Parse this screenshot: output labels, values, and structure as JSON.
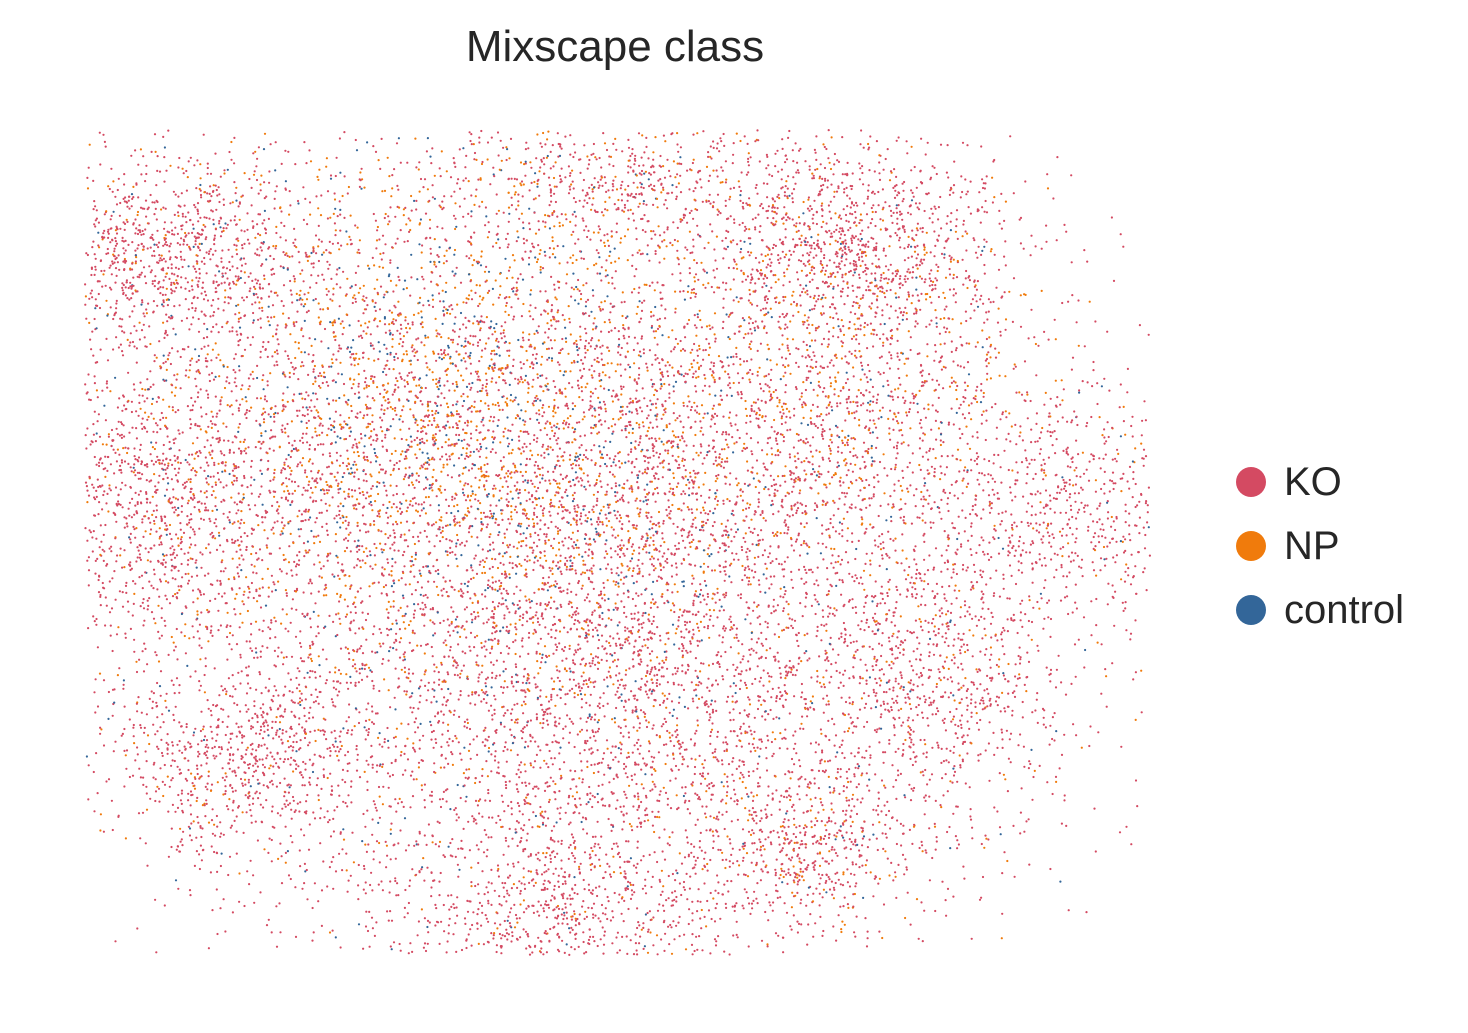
{
  "chart_data": {
    "type": "scatter",
    "title": "Mixscape class",
    "xlabel": "",
    "ylabel": "",
    "axes_visible": false,
    "grid": false,
    "legend_position": "right",
    "legend_entries": [
      "KO",
      "NP",
      "control"
    ],
    "series": [
      {
        "name": "KO",
        "color": "#d44a62"
      },
      {
        "name": "NP",
        "color": "#f07b0c"
      },
      {
        "name": "control",
        "color": "#336699"
      }
    ]
  }
}
